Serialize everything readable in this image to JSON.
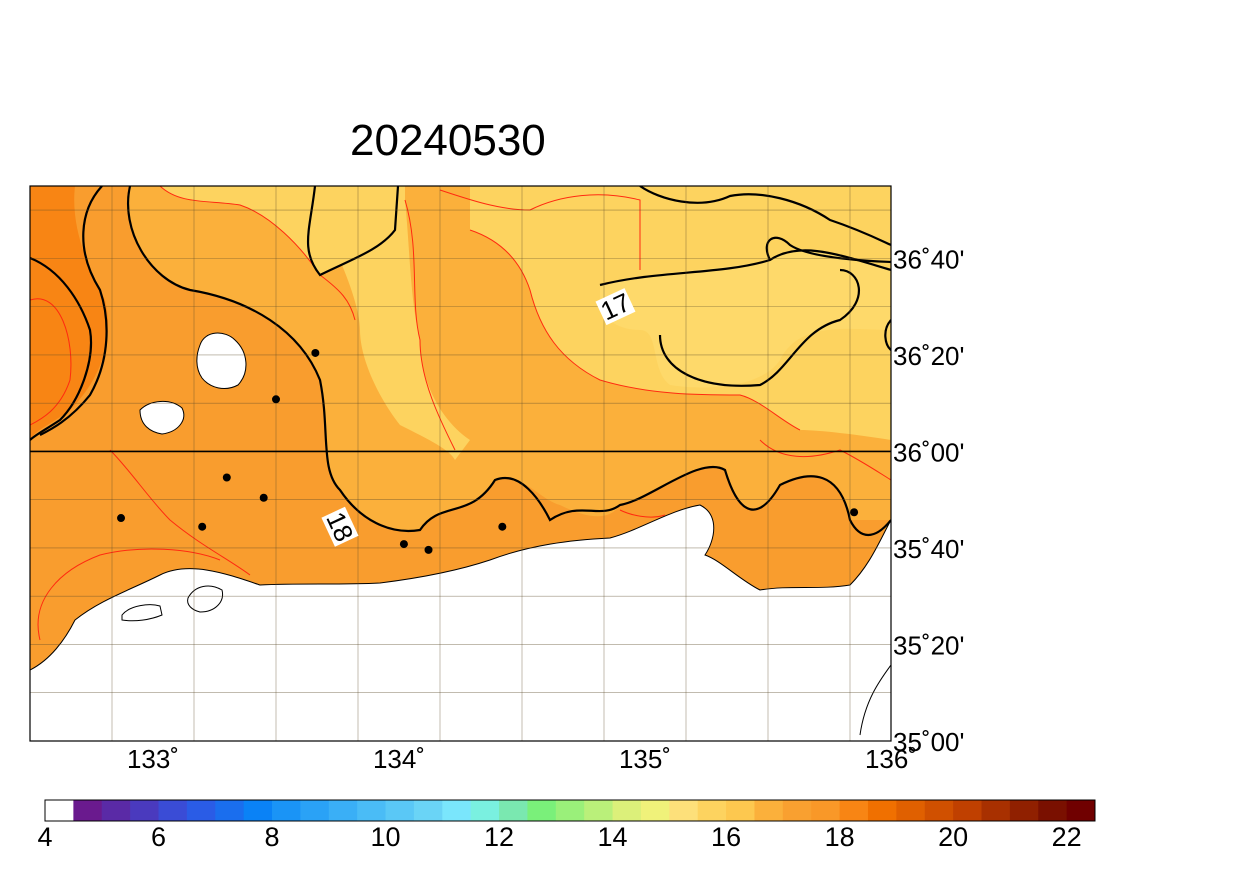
{
  "title": "20240530",
  "map": {
    "lon_range": [
      132.5,
      136.0
    ],
    "lat_range": [
      35.0,
      36.9166
    ],
    "lon_ticks": [
      {
        "value": 133,
        "label": "133˚"
      },
      {
        "value": 134,
        "label": "134˚"
      },
      {
        "value": 135,
        "label": "135˚"
      },
      {
        "value": 136,
        "label": "136˚"
      }
    ],
    "lat_ticks": [
      {
        "value": 35.0,
        "label": "35˚00'"
      },
      {
        "value": 35.3333,
        "label": "35˚20'"
      },
      {
        "value": 35.6667,
        "label": "35˚40'"
      },
      {
        "value": 36.0,
        "label": "36˚00'"
      },
      {
        "value": 36.3333,
        "label": "36˚20'"
      },
      {
        "value": 36.6667,
        "label": "36˚40'"
      }
    ],
    "contour_labels": [
      {
        "text": "17",
        "lon": 134.88,
        "lat": 36.5
      },
      {
        "text": "18",
        "lon": 133.76,
        "lat": 35.74
      }
    ],
    "stations": [
      {
        "lon": 132.87,
        "lat": 35.77
      },
      {
        "lon": 133.2,
        "lat": 35.74
      },
      {
        "lon": 133.3,
        "lat": 35.91
      },
      {
        "lon": 133.45,
        "lat": 35.84
      },
      {
        "lon": 133.5,
        "lat": 36.18
      },
      {
        "lon": 133.66,
        "lat": 36.34
      },
      {
        "lon": 134.02,
        "lat": 35.68
      },
      {
        "lon": 134.12,
        "lat": 35.66
      },
      {
        "lon": 134.42,
        "lat": 35.74
      },
      {
        "lon": 135.85,
        "lat": 35.79
      }
    ],
    "colors": {
      "t16_17": "#fdd35f",
      "t17_18": "#fbb03b",
      "t18_19": "#f99d2e",
      "t19_20": "#f88514",
      "land": "#ffffff",
      "contour_half": "#ff2a10",
      "contour_major": "#000000"
    }
  },
  "colorbar": {
    "min": 4,
    "max": 22.5,
    "step": 0.5,
    "colors": [
      "#ffffff",
      "#6a1a8e",
      "#5a2aa6",
      "#4a3abe",
      "#3a4cd6",
      "#2a5ce6",
      "#1a6eee",
      "#0a82f6",
      "#1a94f6",
      "#2aa2f6",
      "#3aaff6",
      "#4abcf6",
      "#5ac8f6",
      "#6ad4f6",
      "#7ae6fc",
      "#7af0e0",
      "#7ae8b0",
      "#7af07a",
      "#9af07a",
      "#baf07a",
      "#dcf07a",
      "#f0f27a",
      "#fde07a",
      "#fdd35f",
      "#fdc84f",
      "#fbb03b",
      "#f9a030",
      "#f99828",
      "#f88514",
      "#f07000",
      "#e06000",
      "#d05000",
      "#c04000",
      "#a83000",
      "#902000",
      "#7a1000",
      "#700000"
    ],
    "tick_labels": [
      {
        "value": 4,
        "label": "4"
      },
      {
        "value": 6,
        "label": "6"
      },
      {
        "value": 8,
        "label": "8"
      },
      {
        "value": 10,
        "label": "10"
      },
      {
        "value": 12,
        "label": "12"
      },
      {
        "value": 14,
        "label": "14"
      },
      {
        "value": 16,
        "label": "16"
      },
      {
        "value": 18,
        "label": "18"
      },
      {
        "value": 20,
        "label": "20"
      },
      {
        "value": 22,
        "label": "22"
      }
    ]
  }
}
